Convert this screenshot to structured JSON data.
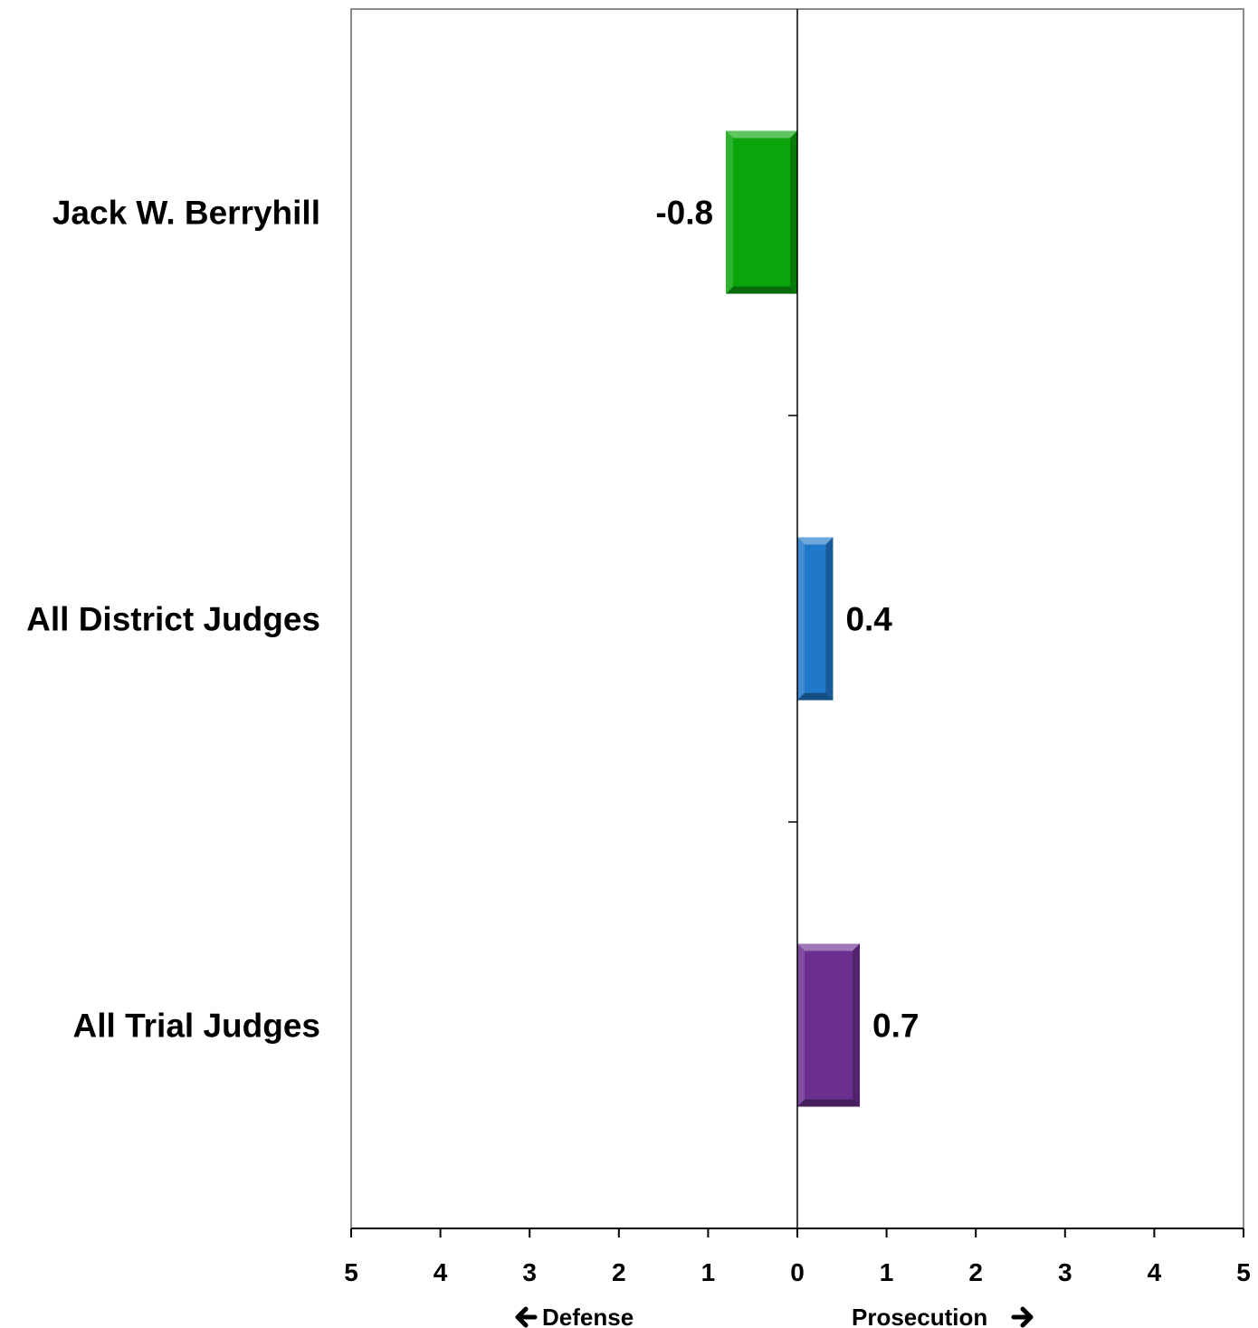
{
  "chart_data": {
    "type": "bar",
    "orientation": "horizontal",
    "categories": [
      "Jack W. Berryhill",
      "All District Judges",
      "All Trial Judges"
    ],
    "values": [
      -0.8,
      0.4,
      0.7
    ],
    "value_labels": [
      "-0.8",
      "0.4",
      "0.7"
    ],
    "colors": [
      "#0aa50a",
      "#1f78c8",
      "#6a2f8f"
    ],
    "xlim": [
      -5,
      5
    ],
    "x_tick_labels": [
      "5",
      "4",
      "3",
      "2",
      "1",
      "0",
      "1",
      "2",
      "3",
      "4",
      "5"
    ],
    "axis_direction_left": "Defense",
    "axis_direction_right": "Prosecution",
    "grid": false,
    "legend": "none"
  }
}
